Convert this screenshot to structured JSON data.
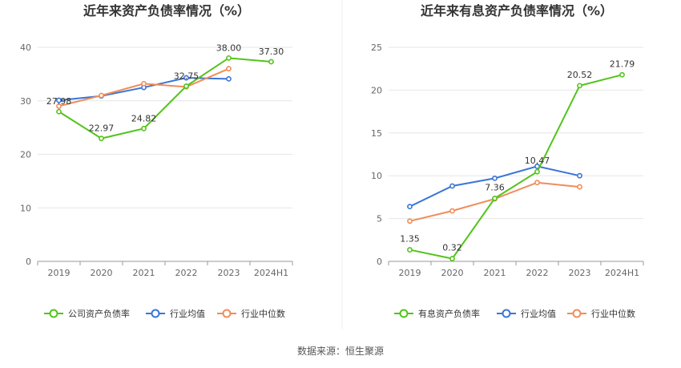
{
  "source_text": "数据来源：恒生聚源",
  "chart_data": [
    {
      "type": "line",
      "title": "近年来资产负债率情况（%）",
      "categories": [
        "2019",
        "2020",
        "2021",
        "2022",
        "2023",
        "2024H1"
      ],
      "ylim": [
        0,
        40
      ],
      "yticks": [
        0,
        10,
        20,
        30,
        40
      ],
      "grid": true,
      "legend_position": "bottom",
      "series": [
        {
          "name": "公司资产负债率",
          "color": "#52c41a",
          "values": [
            27.98,
            22.97,
            24.82,
            32.75,
            38.0,
            37.3
          ],
          "labels": [
            "27.98",
            "22.97",
            "24.82",
            "32.75",
            "38.00",
            "37.30"
          ]
        },
        {
          "name": "行业均值",
          "color": "#3a75d6",
          "values": [
            30.1,
            30.9,
            32.5,
            34.3,
            34.1,
            null
          ]
        },
        {
          "name": "行业中位数",
          "color": "#f08c5a",
          "values": [
            29.0,
            31.0,
            33.2,
            32.6,
            36.0,
            null
          ]
        }
      ]
    },
    {
      "type": "line",
      "title": "近年来有息资产负债率情况（%）",
      "categories": [
        "2019",
        "2020",
        "2021",
        "2022",
        "2023",
        "2024H1"
      ],
      "ylim": [
        0,
        25
      ],
      "yticks": [
        0,
        5,
        10,
        15,
        20,
        25
      ],
      "grid": true,
      "legend_position": "bottom",
      "series": [
        {
          "name": "有息资产负债率",
          "color": "#52c41a",
          "values": [
            1.35,
            0.32,
            7.36,
            10.47,
            20.52,
            21.79
          ],
          "labels": [
            "1.35",
            "0.32",
            "7.36",
            "10.47",
            "20.52",
            "21.79"
          ]
        },
        {
          "name": "行业均值",
          "color": "#3a75d6",
          "values": [
            6.4,
            8.8,
            9.7,
            11.1,
            10.0,
            null
          ]
        },
        {
          "name": "行业中位数",
          "color": "#f08c5a",
          "values": [
            4.7,
            5.9,
            7.3,
            9.2,
            8.7,
            null
          ]
        }
      ]
    }
  ]
}
